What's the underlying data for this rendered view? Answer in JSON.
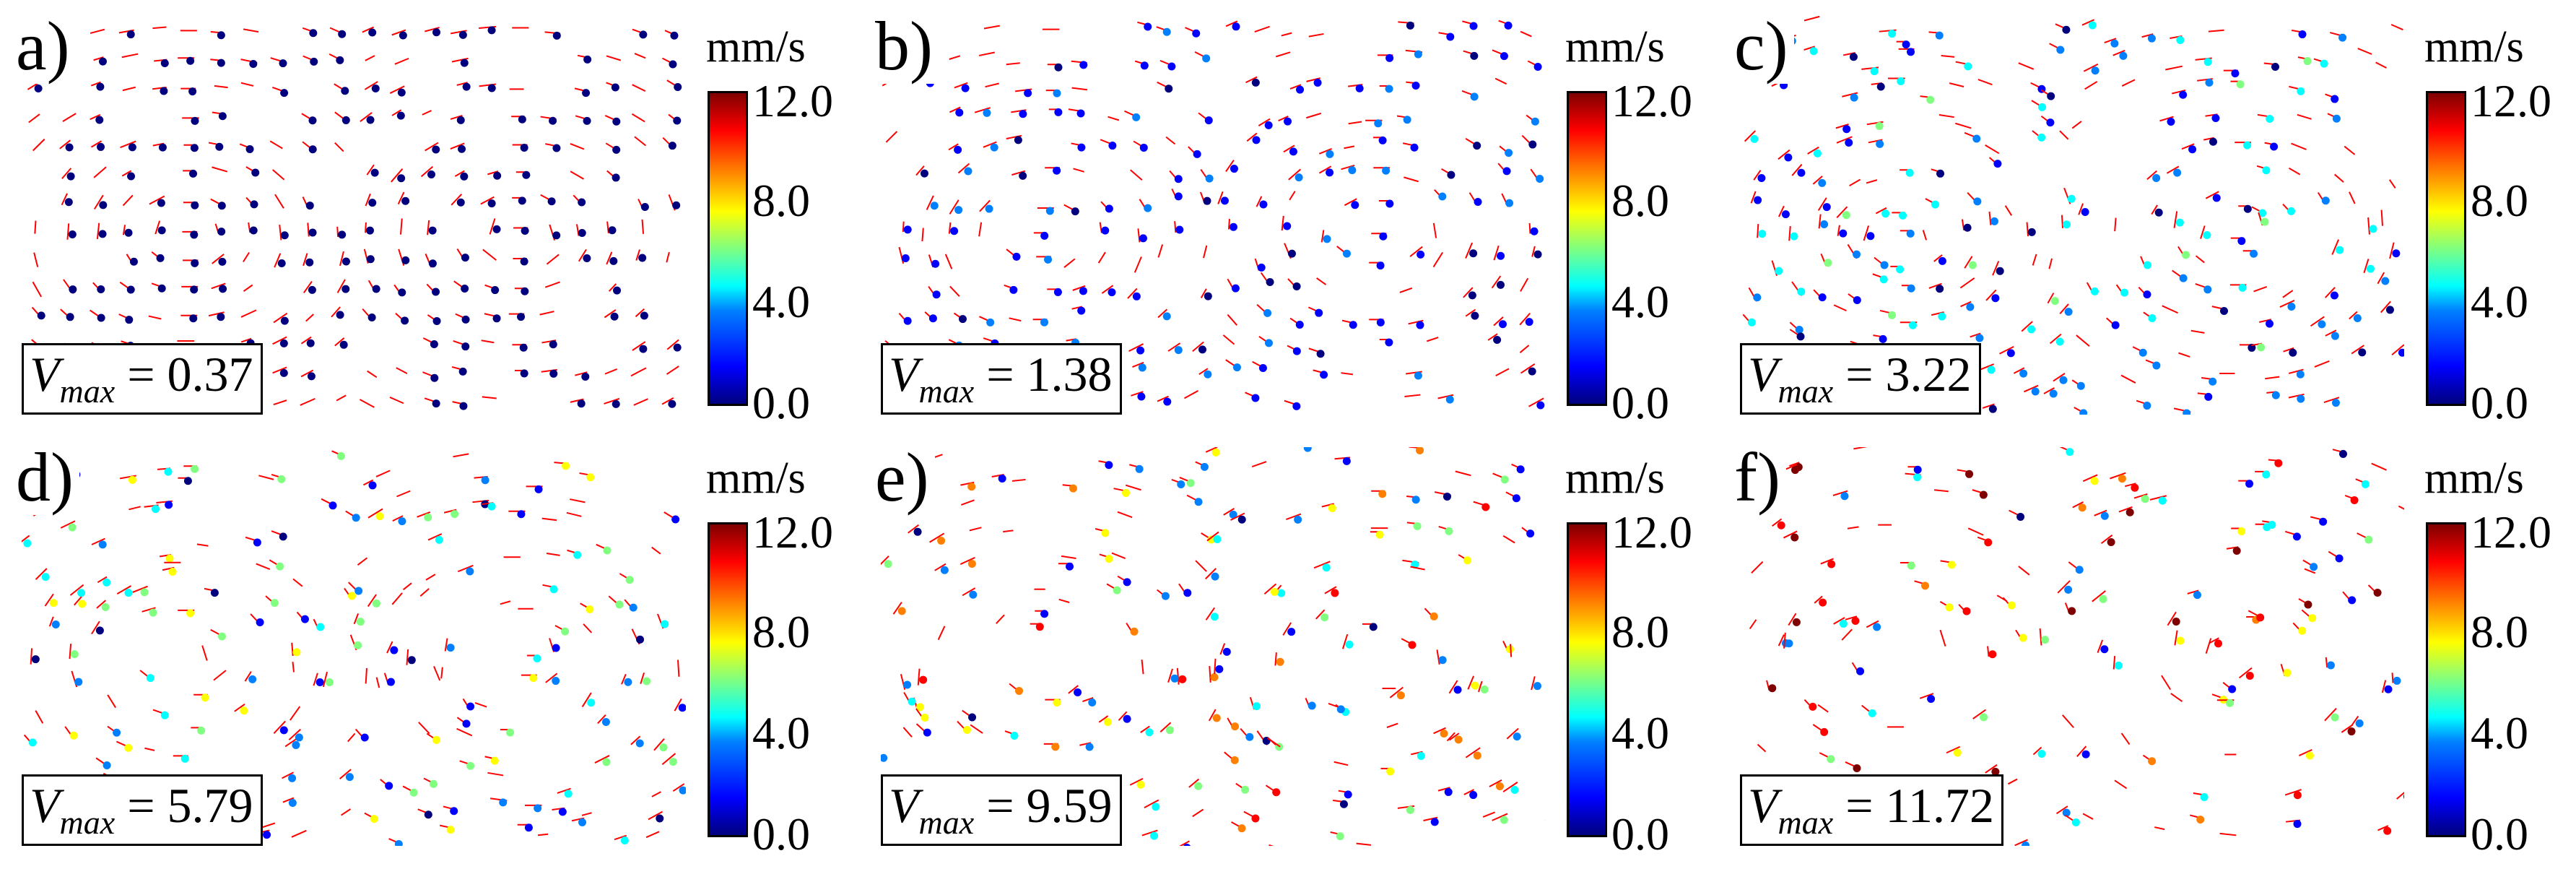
{
  "colorbar": {
    "unit": "mm/s",
    "ticks": [
      "12.0",
      "8.0",
      "4.0",
      "0.0"
    ],
    "range": [
      0.0,
      12.0
    ],
    "colormap": [
      "#00007f",
      "#0000ff",
      "#0080ff",
      "#00ffff",
      "#80ff80",
      "#ffff00",
      "#ff8000",
      "#ff0000",
      "#7f0000"
    ]
  },
  "vmax_symbol": "V",
  "vmax_subscript": "max",
  "vector_color": "#ff0000",
  "panels": [
    {
      "label": "a)",
      "vmax": "0.37"
    },
    {
      "label": "b)",
      "vmax": "1.38"
    },
    {
      "label": "c)",
      "vmax": "3.22"
    },
    {
      "label": "d)",
      "vmax": "5.79"
    },
    {
      "label": "e)",
      "vmax": "9.59"
    },
    {
      "label": "f)",
      "vmax": "11.72"
    }
  ]
}
